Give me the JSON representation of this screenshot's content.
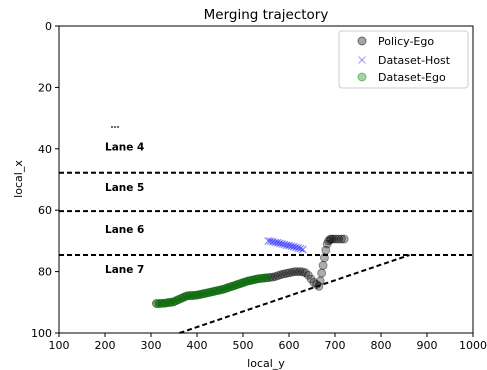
{
  "chart_data": {
    "type": "scatter",
    "title": "Merging trajectory",
    "xlabel": "local_y",
    "ylabel": "local_x",
    "xlim": [
      100,
      1000
    ],
    "ylim": [
      100,
      0
    ],
    "y_inverted": true,
    "xticks": [
      100,
      200,
      300,
      400,
      500,
      600,
      700,
      800,
      900,
      1000
    ],
    "yticks": [
      0,
      20,
      40,
      60,
      80,
      100
    ],
    "grid": false,
    "legend_position": "top-right",
    "legend": [
      {
        "name": "Policy-Ego",
        "marker": "circle",
        "color": "#000000"
      },
      {
        "name": "Dataset-Host",
        "marker": "x",
        "color": "#0000ff"
      },
      {
        "name": "Dataset-Ego",
        "marker": "circle",
        "color": "#008000"
      }
    ],
    "lane_lines": [
      {
        "y": 47.8,
        "x": [
          100,
          1000
        ]
      },
      {
        "y": 60.3,
        "x": [
          100,
          1000
        ]
      },
      {
        "y": 74.6,
        "x": [
          100,
          1000
        ]
      },
      {
        "x": [
          362,
          862
        ],
        "y": [
          100,
          74.6
        ]
      }
    ],
    "lane_labels": [
      {
        "text": "Lane 4",
        "x": 200,
        "y": 40.5
      },
      {
        "text": "Lane 5",
        "x": 200,
        "y": 53.8
      },
      {
        "text": "Lane 6",
        "x": 200,
        "y": 67.4
      },
      {
        "text": "Lane 7",
        "x": 200,
        "y": 80.4
      }
    ],
    "series": [
      {
        "name": "Policy-Ego",
        "marker": "circle",
        "color": "#000000",
        "x": [
          312,
          318,
          324,
          330,
          336,
          342,
          348,
          354,
          360,
          366,
          372,
          378,
          384,
          390,
          396,
          402,
          408,
          414,
          420,
          426,
          432,
          438,
          444,
          450,
          456,
          462,
          468,
          474,
          480,
          486,
          492,
          498,
          504,
          510,
          516,
          522,
          528,
          534,
          540,
          546,
          552,
          558,
          564,
          570,
          576,
          582,
          588,
          594,
          600,
          606,
          612,
          618,
          624,
          630,
          636,
          642,
          648,
          654,
          660,
          665,
          668,
          671,
          674,
          677,
          680,
          683,
          686,
          689,
          692,
          696,
          702,
          708,
          714,
          720
        ],
        "y": [
          90.4,
          90.4,
          90.3,
          90.3,
          90.1,
          90.0,
          89.9,
          89.5,
          89.1,
          88.7,
          88.3,
          87.9,
          87.8,
          87.8,
          87.7,
          87.6,
          87.4,
          87.2,
          87.0,
          86.8,
          86.6,
          86.4,
          86.2,
          86.0,
          85.8,
          85.5,
          85.2,
          84.9,
          84.6,
          84.3,
          84.0,
          83.7,
          83.4,
          83.1,
          82.9,
          82.7,
          82.5,
          82.3,
          82.2,
          82.1,
          82.0,
          81.9,
          81.8,
          81.6,
          81.3,
          81.0,
          80.8,
          80.6,
          80.4,
          80.2,
          80.0,
          80.0,
          80.0,
          80.1,
          80.4,
          81.2,
          82.4,
          83.5,
          84.2,
          84.8,
          83.0,
          80.5,
          78.0,
          75.5,
          73.0,
          71.0,
          70.0,
          69.5,
          69.4,
          69.4,
          69.4,
          69.4,
          69.4,
          69.4
        ]
      },
      {
        "name": "Dataset-Host",
        "marker": "x",
        "color": "#0000ff",
        "x": [
          555,
          560,
          565,
          570,
          575,
          580,
          585,
          590,
          595,
          600,
          605,
          610,
          615,
          620,
          625,
          630
        ],
        "y": [
          70.0,
          70.1,
          70.3,
          70.5,
          70.6,
          70.8,
          71.0,
          71.2,
          71.4,
          71.5,
          71.7,
          71.9,
          72.1,
          72.3,
          72.5,
          72.8
        ]
      },
      {
        "name": "Dataset-Ego",
        "marker": "circle",
        "color": "#008000",
        "x": [
          312,
          318,
          324,
          330,
          336,
          342,
          348,
          354,
          360,
          366,
          372,
          378,
          384,
          390,
          396,
          402,
          408,
          414,
          420,
          426,
          432,
          438,
          444,
          450,
          456,
          462,
          468,
          474,
          480,
          486,
          492,
          498,
          504,
          510,
          516,
          522,
          528,
          534,
          540,
          546,
          552
        ],
        "y": [
          90.4,
          90.4,
          90.3,
          90.3,
          90.1,
          90.0,
          89.9,
          89.5,
          89.1,
          88.7,
          88.3,
          87.9,
          87.8,
          87.8,
          87.7,
          87.6,
          87.4,
          87.2,
          87.0,
          86.8,
          86.6,
          86.4,
          86.2,
          86.0,
          85.8,
          85.5,
          85.2,
          84.9,
          84.6,
          84.3,
          84.0,
          83.7,
          83.4,
          83.1,
          82.9,
          82.7,
          82.5,
          82.3,
          82.2,
          82.1,
          82.0
        ]
      }
    ]
  }
}
